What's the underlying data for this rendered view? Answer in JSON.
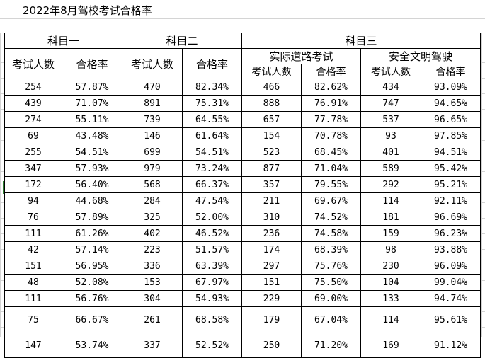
{
  "title": "2022年8月驾校考试合格率",
  "headers": {
    "subject1": "科目一",
    "subject2": "科目二",
    "subject3": "科目三",
    "road_test": "实际道路考试",
    "safe_driving": "安全文明驾驶",
    "examinees": "考试人数",
    "pass_rate": "合格率"
  },
  "rows": [
    [
      "254",
      "57.87%",
      "470",
      "82.34%",
      "466",
      "82.62%",
      "434",
      "93.09%"
    ],
    [
      "439",
      "71.07%",
      "891",
      "75.31%",
      "888",
      "76.91%",
      "747",
      "94.65%"
    ],
    [
      "274",
      "55.11%",
      "739",
      "64.55%",
      "657",
      "77.78%",
      "537",
      "96.65%"
    ],
    [
      "69",
      "43.48%",
      "146",
      "61.64%",
      "154",
      "70.78%",
      "93",
      "97.85%"
    ],
    [
      "255",
      "54.51%",
      "699",
      "54.51%",
      "523",
      "68.45%",
      "401",
      "94.51%"
    ],
    [
      "347",
      "57.93%",
      "979",
      "73.24%",
      "877",
      "71.04%",
      "589",
      "95.42%"
    ],
    [
      "172",
      "56.40%",
      "568",
      "66.37%",
      "357",
      "79.55%",
      "292",
      "95.21%"
    ],
    [
      "94",
      "44.68%",
      "284",
      "47.54%",
      "211",
      "69.67%",
      "114",
      "92.11%"
    ],
    [
      "76",
      "57.89%",
      "325",
      "52.00%",
      "310",
      "74.52%",
      "181",
      "96.69%"
    ],
    [
      "111",
      "61.26%",
      "402",
      "46.52%",
      "236",
      "74.58%",
      "159",
      "96.23%"
    ],
    [
      "42",
      "57.14%",
      "223",
      "51.57%",
      "174",
      "68.39%",
      "98",
      "93.88%"
    ],
    [
      "151",
      "56.95%",
      "336",
      "63.39%",
      "297",
      "75.76%",
      "230",
      "96.09%"
    ],
    [
      "48",
      "52.08%",
      "153",
      "67.97%",
      "151",
      "75.50%",
      "104",
      "99.04%"
    ],
    [
      "111",
      "56.76%",
      "304",
      "54.93%",
      "229",
      "69.00%",
      "133",
      "94.74%"
    ],
    [
      "75",
      "66.67%",
      "261",
      "68.58%",
      "179",
      "67.04%",
      "114",
      "95.61%"
    ],
    [
      "147",
      "53.74%",
      "337",
      "52.52%",
      "250",
      "71.20%",
      "169",
      "91.12%"
    ]
  ]
}
